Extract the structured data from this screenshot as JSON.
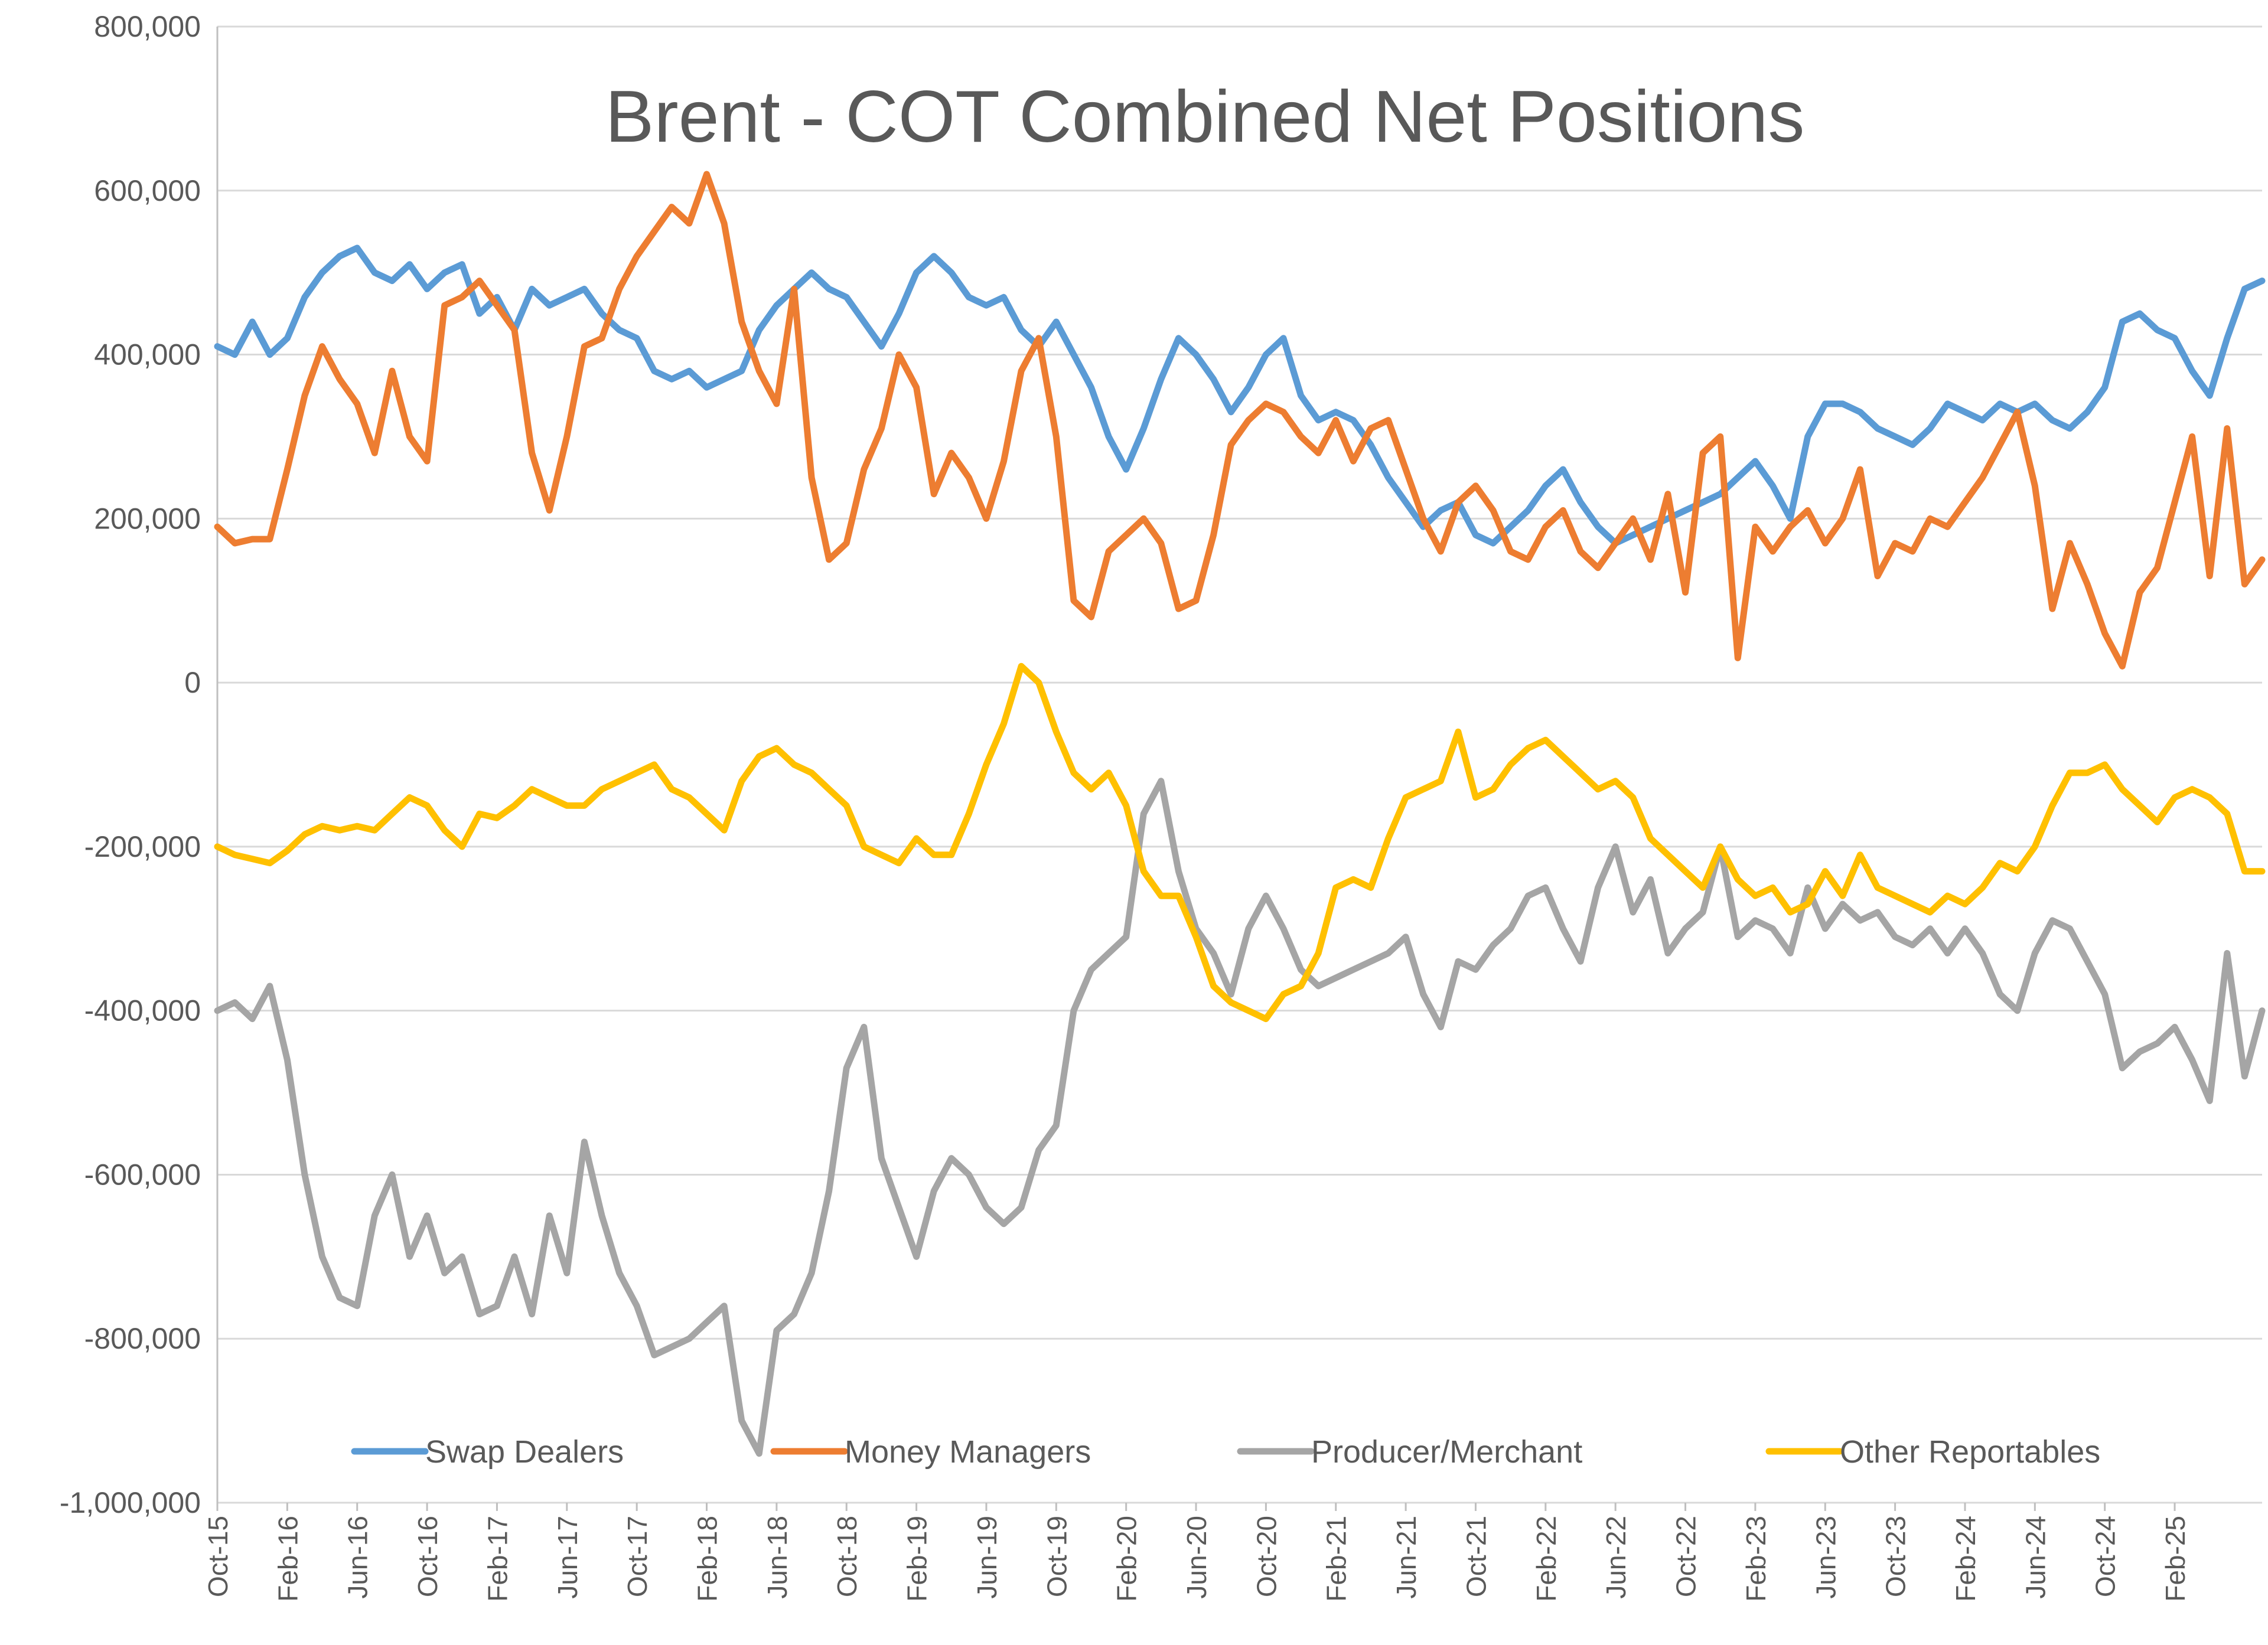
{
  "chart_data": {
    "type": "line",
    "title": "Brent - COT Combined Net Positions",
    "xlabel": "",
    "ylabel": "",
    "ylim": [
      -1000000,
      800000
    ],
    "y_ticks": [
      800000,
      600000,
      400000,
      200000,
      0,
      -200000,
      -400000,
      -600000,
      -800000,
      -1000000
    ],
    "y_tick_labels": [
      "800,000",
      "600,000",
      "400,000",
      "200,000",
      "0",
      "-200,000",
      "-400,000",
      "-600,000",
      "-800,000",
      "-1,000,000"
    ],
    "x_tick_labels": [
      "Oct-15",
      "Feb-16",
      "Jun-16",
      "Oct-16",
      "Feb-17",
      "Jun-17",
      "Oct-17",
      "Feb-18",
      "Jun-18",
      "Oct-18",
      "Feb-19",
      "Jun-19",
      "Oct-19",
      "Feb-20",
      "Jun-20",
      "Oct-20",
      "Feb-21",
      "Jun-21",
      "Oct-21",
      "Feb-22",
      "Jun-22",
      "Oct-22",
      "Feb-23",
      "Jun-23",
      "Oct-23",
      "Feb-24",
      "Jun-24",
      "Oct-24",
      "Feb-25"
    ],
    "x_range": [
      "Oct-15",
      "Jul-25"
    ],
    "grid": true,
    "legend_position": "bottom",
    "series": [
      {
        "name": "Swap Dealers",
        "color": "#5b9bd5",
        "x": [
          "Oct-15",
          "Nov-15",
          "Dec-15",
          "Jan-16",
          "Feb-16",
          "Mar-16",
          "Apr-16",
          "May-16",
          "Jun-16",
          "Jul-16",
          "Aug-16",
          "Sep-16",
          "Oct-16",
          "Nov-16",
          "Dec-16",
          "Jan-17",
          "Feb-17",
          "Mar-17",
          "Apr-17",
          "May-17",
          "Jun-17",
          "Jul-17",
          "Aug-17",
          "Sep-17",
          "Oct-17",
          "Nov-17",
          "Dec-17",
          "Jan-18",
          "Feb-18",
          "Mar-18",
          "Apr-18",
          "May-18",
          "Jun-18",
          "Jul-18",
          "Aug-18",
          "Sep-18",
          "Oct-18",
          "Nov-18",
          "Dec-18",
          "Jan-19",
          "Feb-19",
          "Mar-19",
          "Apr-19",
          "May-19",
          "Jun-19",
          "Jul-19",
          "Aug-19",
          "Sep-19",
          "Oct-19",
          "Nov-19",
          "Dec-19",
          "Jan-20",
          "Feb-20",
          "Mar-20",
          "Apr-20",
          "May-20",
          "Jun-20",
          "Jul-20",
          "Aug-20",
          "Sep-20",
          "Oct-20",
          "Nov-20",
          "Dec-20",
          "Jan-21",
          "Feb-21",
          "Mar-21",
          "Apr-21",
          "May-21",
          "Jun-21",
          "Jul-21",
          "Aug-21",
          "Sep-21",
          "Oct-21",
          "Nov-21",
          "Dec-21",
          "Jan-22",
          "Feb-22",
          "Mar-22",
          "Apr-22",
          "May-22",
          "Jun-22",
          "Jul-22",
          "Aug-22",
          "Sep-22",
          "Oct-22",
          "Nov-22",
          "Dec-22",
          "Jan-23",
          "Feb-23",
          "Mar-23",
          "Apr-23",
          "May-23",
          "Jun-23",
          "Jul-23",
          "Aug-23",
          "Sep-23",
          "Oct-23",
          "Nov-23",
          "Dec-23",
          "Jan-24",
          "Feb-24",
          "Mar-24",
          "Apr-24",
          "May-24",
          "Jun-24",
          "Jul-24",
          "Aug-24",
          "Sep-24",
          "Oct-24",
          "Nov-24",
          "Dec-24",
          "Jan-25",
          "Feb-25",
          "Mar-25",
          "Apr-25",
          "May-25",
          "Jun-25",
          "Jul-25"
        ],
        "values": [
          410000,
          400000,
          440000,
          400000,
          420000,
          470000,
          500000,
          520000,
          530000,
          500000,
          490000,
          510000,
          480000,
          500000,
          510000,
          450000,
          470000,
          430000,
          480000,
          460000,
          470000,
          480000,
          450000,
          430000,
          420000,
          380000,
          370000,
          380000,
          360000,
          370000,
          380000,
          430000,
          460000,
          480000,
          500000,
          480000,
          470000,
          440000,
          410000,
          450000,
          500000,
          520000,
          500000,
          470000,
          460000,
          470000,
          430000,
          410000,
          440000,
          400000,
          360000,
          300000,
          260000,
          310000,
          370000,
          420000,
          400000,
          370000,
          330000,
          360000,
          400000,
          420000,
          350000,
          320000,
          330000,
          320000,
          290000,
          250000,
          220000,
          190000,
          210000,
          220000,
          180000,
          170000,
          190000,
          210000,
          240000,
          260000,
          220000,
          190000,
          170000,
          180000,
          190000,
          200000,
          210000,
          220000,
          230000,
          250000,
          270000,
          240000,
          200000,
          300000,
          340000,
          340000,
          330000,
          310000,
          300000,
          290000,
          310000,
          340000,
          330000,
          320000,
          340000,
          330000,
          340000,
          320000,
          310000,
          330000,
          360000,
          440000,
          450000,
          430000,
          420000,
          380000,
          350000,
          420000,
          480000,
          490000
        ]
      },
      {
        "name": "Money Managers",
        "color": "#ed7d31",
        "x": [
          "Oct-15",
          "Nov-15",
          "Dec-15",
          "Jan-16",
          "Feb-16",
          "Mar-16",
          "Apr-16",
          "May-16",
          "Jun-16",
          "Jul-16",
          "Aug-16",
          "Sep-16",
          "Oct-16",
          "Nov-16",
          "Dec-16",
          "Jan-17",
          "Feb-17",
          "Mar-17",
          "Apr-17",
          "May-17",
          "Jun-17",
          "Jul-17",
          "Aug-17",
          "Sep-17",
          "Oct-17",
          "Nov-17",
          "Dec-17",
          "Jan-18",
          "Feb-18",
          "Mar-18",
          "Apr-18",
          "May-18",
          "Jun-18",
          "Jul-18",
          "Aug-18",
          "Sep-18",
          "Oct-18",
          "Nov-18",
          "Dec-18",
          "Jan-19",
          "Feb-19",
          "Mar-19",
          "Apr-19",
          "May-19",
          "Jun-19",
          "Jul-19",
          "Aug-19",
          "Sep-19",
          "Oct-19",
          "Nov-19",
          "Dec-19",
          "Jan-20",
          "Feb-20",
          "Mar-20",
          "Apr-20",
          "May-20",
          "Jun-20",
          "Jul-20",
          "Aug-20",
          "Sep-20",
          "Oct-20",
          "Nov-20",
          "Dec-20",
          "Jan-21",
          "Feb-21",
          "Mar-21",
          "Apr-21",
          "May-21",
          "Jun-21",
          "Jul-21",
          "Aug-21",
          "Sep-21",
          "Oct-21",
          "Nov-21",
          "Dec-21",
          "Jan-22",
          "Feb-22",
          "Mar-22",
          "Apr-22",
          "May-22",
          "Jun-22",
          "Jul-22",
          "Aug-22",
          "Sep-22",
          "Oct-22",
          "Nov-22",
          "Dec-22",
          "Jan-23",
          "Feb-23",
          "Mar-23",
          "Apr-23",
          "May-23",
          "Jun-23",
          "Jul-23",
          "Aug-23",
          "Sep-23",
          "Oct-23",
          "Nov-23",
          "Dec-23",
          "Jan-24",
          "Feb-24",
          "Mar-24",
          "Apr-24",
          "May-24",
          "Jun-24",
          "Jul-24",
          "Aug-24",
          "Sep-24",
          "Oct-24",
          "Nov-24",
          "Dec-24",
          "Jan-25",
          "Feb-25",
          "Mar-25",
          "Apr-25",
          "May-25",
          "Jun-25",
          "Jul-25"
        ],
        "values": [
          190000,
          170000,
          175000,
          175000,
          260000,
          350000,
          410000,
          370000,
          340000,
          280000,
          380000,
          300000,
          270000,
          460000,
          470000,
          490000,
          460000,
          430000,
          280000,
          210000,
          300000,
          410000,
          420000,
          480000,
          520000,
          550000,
          580000,
          560000,
          620000,
          560000,
          440000,
          380000,
          340000,
          480000,
          250000,
          150000,
          170000,
          260000,
          310000,
          400000,
          360000,
          230000,
          280000,
          250000,
          200000,
          270000,
          380000,
          420000,
          300000,
          100000,
          80000,
          160000,
          180000,
          200000,
          170000,
          90000,
          100000,
          180000,
          290000,
          320000,
          340000,
          330000,
          300000,
          280000,
          320000,
          270000,
          310000,
          320000,
          260000,
          200000,
          160000,
          220000,
          240000,
          210000,
          160000,
          150000,
          190000,
          210000,
          160000,
          140000,
          170000,
          200000,
          150000,
          230000,
          110000,
          280000,
          300000,
          30000,
          190000,
          160000,
          190000,
          210000,
          170000,
          200000,
          260000,
          130000,
          170000,
          160000,
          200000,
          190000,
          220000,
          250000,
          290000,
          330000,
          240000,
          90000,
          170000,
          120000,
          60000,
          20000,
          110000,
          140000,
          220000,
          300000,
          130000,
          310000,
          120000,
          150000
        ]
      },
      {
        "name": "Producer/Merchant",
        "color": "#a5a5a5",
        "x": [
          "Oct-15",
          "Nov-15",
          "Dec-15",
          "Jan-16",
          "Feb-16",
          "Mar-16",
          "Apr-16",
          "May-16",
          "Jun-16",
          "Jul-16",
          "Aug-16",
          "Sep-16",
          "Oct-16",
          "Nov-16",
          "Dec-16",
          "Jan-17",
          "Feb-17",
          "Mar-17",
          "Apr-17",
          "May-17",
          "Jun-17",
          "Jul-17",
          "Aug-17",
          "Sep-17",
          "Oct-17",
          "Nov-17",
          "Dec-17",
          "Jan-18",
          "Feb-18",
          "Mar-18",
          "Apr-18",
          "May-18",
          "Jun-18",
          "Jul-18",
          "Aug-18",
          "Sep-18",
          "Oct-18",
          "Nov-18",
          "Dec-18",
          "Jan-19",
          "Feb-19",
          "Mar-19",
          "Apr-19",
          "May-19",
          "Jun-19",
          "Jul-19",
          "Aug-19",
          "Sep-19",
          "Oct-19",
          "Nov-19",
          "Dec-19",
          "Jan-20",
          "Feb-20",
          "Mar-20",
          "Apr-20",
          "May-20",
          "Jun-20",
          "Jul-20",
          "Aug-20",
          "Sep-20",
          "Oct-20",
          "Nov-20",
          "Dec-20",
          "Jan-21",
          "Feb-21",
          "Mar-21",
          "Apr-21",
          "May-21",
          "Jun-21",
          "Jul-21",
          "Aug-21",
          "Sep-21",
          "Oct-21",
          "Nov-21",
          "Dec-21",
          "Jan-22",
          "Feb-22",
          "Mar-22",
          "Apr-22",
          "May-22",
          "Jun-22",
          "Jul-22",
          "Aug-22",
          "Sep-22",
          "Oct-22",
          "Nov-22",
          "Dec-22",
          "Jan-23",
          "Feb-23",
          "Mar-23",
          "Apr-23",
          "May-23",
          "Jun-23",
          "Jul-23",
          "Aug-23",
          "Sep-23",
          "Oct-23",
          "Nov-23",
          "Dec-23",
          "Jan-24",
          "Feb-24",
          "Mar-24",
          "Apr-24",
          "May-24",
          "Jun-24",
          "Jul-24",
          "Aug-24",
          "Sep-24",
          "Oct-24",
          "Nov-24",
          "Dec-24",
          "Jan-25",
          "Feb-25",
          "Mar-25",
          "Apr-25",
          "May-25",
          "Jun-25",
          "Jul-25"
        ],
        "values": [
          -400000,
          -390000,
          -410000,
          -370000,
          -460000,
          -600000,
          -700000,
          -750000,
          -760000,
          -650000,
          -600000,
          -700000,
          -650000,
          -720000,
          -700000,
          -770000,
          -760000,
          -700000,
          -770000,
          -650000,
          -720000,
          -560000,
          -650000,
          -720000,
          -760000,
          -820000,
          -810000,
          -800000,
          -780000,
          -760000,
          -900000,
          -940000,
          -790000,
          -770000,
          -720000,
          -620000,
          -470000,
          -420000,
          -580000,
          -640000,
          -700000,
          -620000,
          -580000,
          -600000,
          -640000,
          -660000,
          -640000,
          -570000,
          -540000,
          -400000,
          -350000,
          -330000,
          -310000,
          -160000,
          -120000,
          -230000,
          -300000,
          -330000,
          -380000,
          -300000,
          -260000,
          -300000,
          -350000,
          -370000,
          -360000,
          -350000,
          -340000,
          -330000,
          -310000,
          -380000,
          -420000,
          -340000,
          -350000,
          -320000,
          -300000,
          -260000,
          -250000,
          -300000,
          -340000,
          -250000,
          -200000,
          -280000,
          -240000,
          -330000,
          -300000,
          -280000,
          -200000,
          -310000,
          -290000,
          -300000,
          -330000,
          -250000,
          -300000,
          -270000,
          -290000,
          -280000,
          -310000,
          -320000,
          -300000,
          -330000,
          -300000,
          -330000,
          -380000,
          -400000,
          -330000,
          -290000,
          -300000,
          -340000,
          -380000,
          -470000,
          -450000,
          -440000,
          -420000,
          -460000,
          -510000,
          -330000,
          -480000,
          -400000
        ]
      },
      {
        "name": "Other Reportables",
        "color": "#ffc000",
        "x": [
          "Oct-15",
          "Nov-15",
          "Dec-15",
          "Jan-16",
          "Feb-16",
          "Mar-16",
          "Apr-16",
          "May-16",
          "Jun-16",
          "Jul-16",
          "Aug-16",
          "Sep-16",
          "Oct-16",
          "Nov-16",
          "Dec-16",
          "Jan-17",
          "Feb-17",
          "Mar-17",
          "Apr-17",
          "May-17",
          "Jun-17",
          "Jul-17",
          "Aug-17",
          "Sep-17",
          "Oct-17",
          "Nov-17",
          "Dec-17",
          "Jan-18",
          "Feb-18",
          "Mar-18",
          "Apr-18",
          "May-18",
          "Jun-18",
          "Jul-18",
          "Aug-18",
          "Sep-18",
          "Oct-18",
          "Nov-18",
          "Dec-18",
          "Jan-19",
          "Feb-19",
          "Mar-19",
          "Apr-19",
          "May-19",
          "Jun-19",
          "Jul-19",
          "Aug-19",
          "Sep-19",
          "Oct-19",
          "Nov-19",
          "Dec-19",
          "Jan-20",
          "Feb-20",
          "Mar-20",
          "Apr-20",
          "May-20",
          "Jun-20",
          "Jul-20",
          "Aug-20",
          "Sep-20",
          "Oct-20",
          "Nov-20",
          "Dec-20",
          "Jan-21",
          "Feb-21",
          "Mar-21",
          "Apr-21",
          "May-21",
          "Jun-21",
          "Jul-21",
          "Aug-21",
          "Sep-21",
          "Oct-21",
          "Nov-21",
          "Dec-21",
          "Jan-22",
          "Feb-22",
          "Mar-22",
          "Apr-22",
          "May-22",
          "Jun-22",
          "Jul-22",
          "Aug-22",
          "Sep-22",
          "Oct-22",
          "Nov-22",
          "Dec-22",
          "Jan-23",
          "Feb-23",
          "Mar-23",
          "Apr-23",
          "May-23",
          "Jun-23",
          "Jul-23",
          "Aug-23",
          "Sep-23",
          "Oct-23",
          "Nov-23",
          "Dec-23",
          "Jan-24",
          "Feb-24",
          "Mar-24",
          "Apr-24",
          "May-24",
          "Jun-24",
          "Jul-24",
          "Aug-24",
          "Sep-24",
          "Oct-24",
          "Nov-24",
          "Dec-24",
          "Jan-25",
          "Feb-25",
          "Mar-25",
          "Apr-25",
          "May-25",
          "Jun-25",
          "Jul-25"
        ],
        "values": [
          -200000,
          -210000,
          -215000,
          -220000,
          -205000,
          -185000,
          -175000,
          -180000,
          -175000,
          -180000,
          -160000,
          -140000,
          -150000,
          -180000,
          -200000,
          -160000,
          -165000,
          -150000,
          -130000,
          -140000,
          -150000,
          -150000,
          -130000,
          -120000,
          -110000,
          -100000,
          -130000,
          -140000,
          -160000,
          -180000,
          -120000,
          -90000,
          -80000,
          -100000,
          -110000,
          -130000,
          -150000,
          -200000,
          -210000,
          -220000,
          -190000,
          -210000,
          -210000,
          -160000,
          -100000,
          -50000,
          20000,
          0,
          -60000,
          -110000,
          -130000,
          -110000,
          -150000,
          -230000,
          -260000,
          -260000,
          -310000,
          -370000,
          -390000,
          -400000,
          -410000,
          -380000,
          -370000,
          -330000,
          -250000,
          -240000,
          -250000,
          -190000,
          -140000,
          -130000,
          -120000,
          -60000,
          -140000,
          -130000,
          -100000,
          -80000,
          -70000,
          -90000,
          -110000,
          -130000,
          -120000,
          -140000,
          -190000,
          -210000,
          -230000,
          -250000,
          -200000,
          -240000,
          -260000,
          -250000,
          -280000,
          -270000,
          -230000,
          -260000,
          -210000,
          -250000,
          -260000,
          -270000,
          -280000,
          -260000,
          -270000,
          -250000,
          -220000,
          -230000,
          -200000,
          -150000,
          -110000,
          -110000,
          -100000,
          -130000,
          -150000,
          -170000,
          -140000,
          -130000,
          -140000,
          -160000,
          -230000,
          -230000
        ]
      }
    ]
  }
}
